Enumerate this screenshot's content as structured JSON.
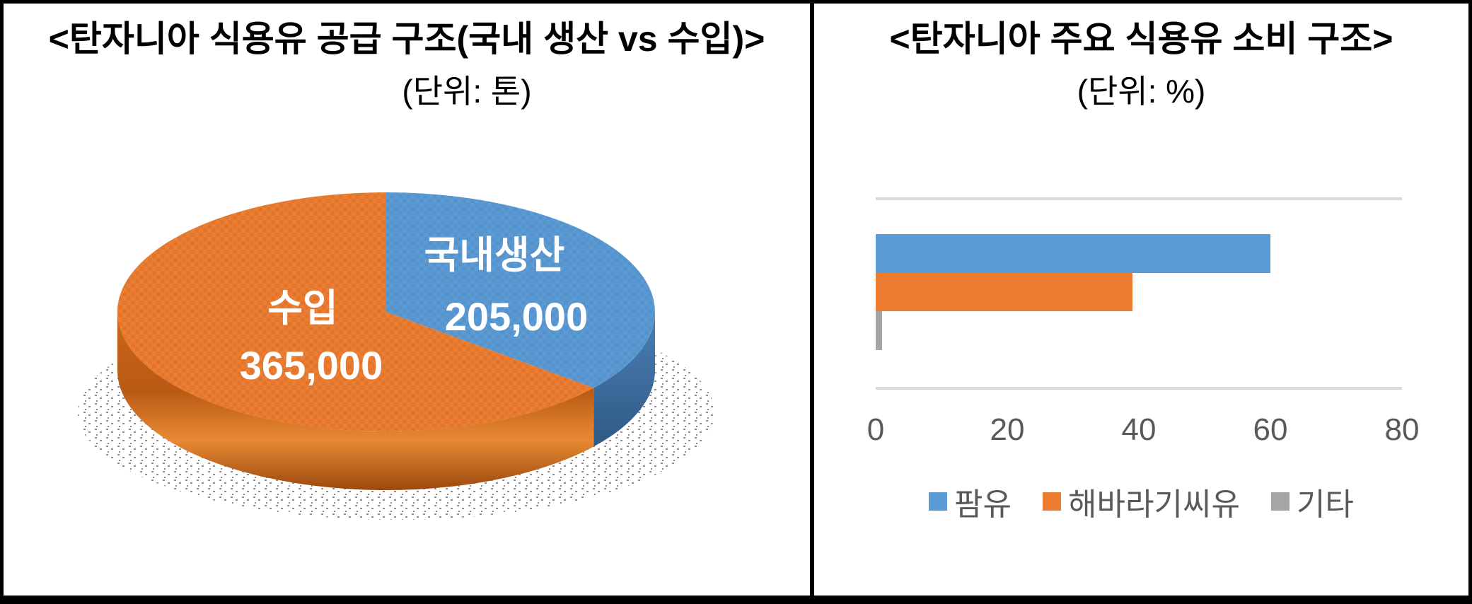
{
  "accent_colors": {
    "blue": "#5B9BD5",
    "orange": "#ED7D31",
    "gray": "#A5A5A5",
    "blue_side": "#3D6E9E",
    "orange_side": "#B85C14",
    "gridline": "#D9D9D9",
    "axis_text": "#595959",
    "pie_label_text": "#FFFFFF",
    "border": "#000000"
  },
  "chart_data": [
    {
      "type": "pie",
      "effect": "3d",
      "title": "<탄자니아 식용유 공급 구조(국내 생산 vs 수입)>",
      "subtitle": "(단위: 톤)",
      "unit": "톤",
      "labels": [
        "국내생산",
        "수입"
      ],
      "values": [
        205000,
        365000
      ],
      "display_values": [
        "205,000",
        "365,000"
      ],
      "colors": [
        "#5B9BD5",
        "#ED7D31"
      ],
      "side_colors": [
        "#3D6E9E",
        "#B85C14"
      ],
      "start_angle": "12-oclock",
      "direction": "clockwise",
      "data_labels": "name-and-value-inside"
    },
    {
      "type": "bar",
      "orientation": "horizontal",
      "title": "<탄자니아 주요 식용유 소비 구조>",
      "subtitle": "(단위: %)",
      "unit": "%",
      "categories": [
        "팜유",
        "해바라기씨유",
        "기타"
      ],
      "values": [
        60,
        39,
        1
      ],
      "colors": [
        "#5B9BD5",
        "#ED7D31",
        "#A5A5A5"
      ],
      "xlim": [
        0,
        80
      ],
      "xticks": [
        0,
        20,
        40,
        60,
        80
      ],
      "grid": "edges-only",
      "legend": [
        "팜유",
        "해바라기씨유",
        "기타"
      ],
      "legend_position": "bottom"
    }
  ]
}
